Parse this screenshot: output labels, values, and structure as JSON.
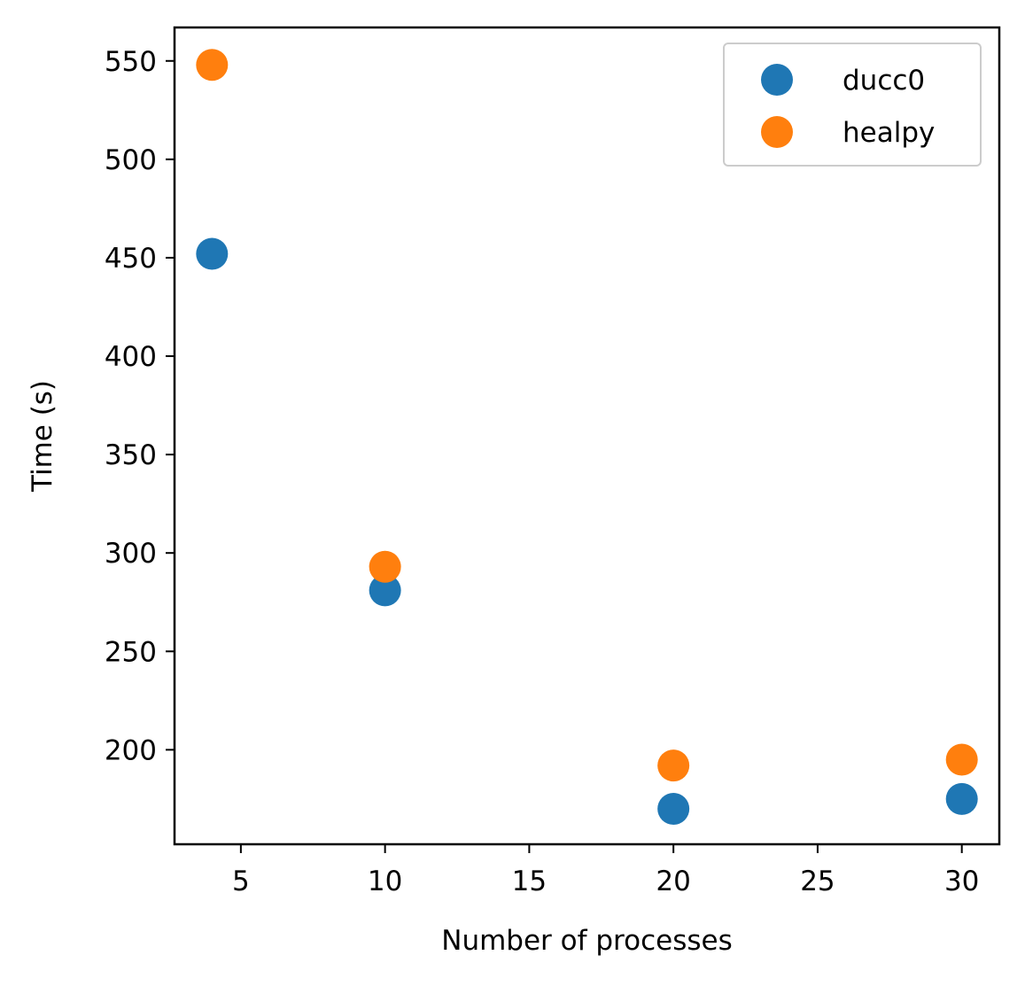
{
  "chart_data": {
    "type": "scatter",
    "title": "",
    "xlabel": "Number of processes",
    "ylabel": "Time (s)",
    "xlim": [
      2.7,
      31.3
    ],
    "ylim": [
      152,
      567
    ],
    "xticks": [
      5,
      10,
      15,
      20,
      25,
      30
    ],
    "yticks": [
      200,
      250,
      300,
      350,
      400,
      450,
      500,
      550
    ],
    "grid": false,
    "legend": "top-right",
    "series": [
      {
        "name": "ducc0",
        "color": "#1f77b4",
        "points": [
          {
            "x": 4,
            "y": 452
          },
          {
            "x": 10,
            "y": 281
          },
          {
            "x": 20,
            "y": 170
          },
          {
            "x": 30,
            "y": 175
          }
        ]
      },
      {
        "name": "healpy",
        "color": "#ff7f0e",
        "points": [
          {
            "x": 4,
            "y": 548
          },
          {
            "x": 10,
            "y": 293
          },
          {
            "x": 20,
            "y": 192
          },
          {
            "x": 30,
            "y": 195
          }
        ]
      }
    ]
  }
}
